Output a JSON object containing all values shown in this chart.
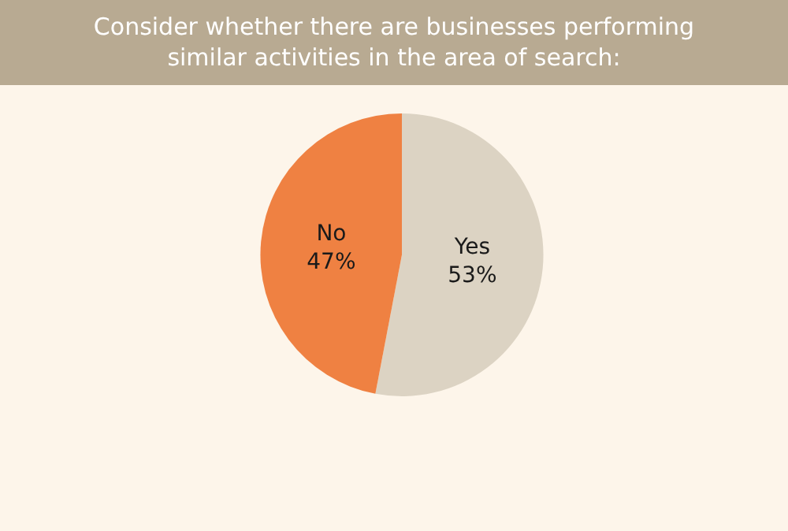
{
  "chart_data": {
    "type": "pie",
    "title": "Consider whether there are businesses performing similar activities in the area of search:",
    "categories": [
      "Yes",
      "No"
    ],
    "values": [
      53,
      47
    ],
    "value_labels": [
      "53%",
      "47%"
    ],
    "colors": [
      "#dcd3c3",
      "#ef8142"
    ],
    "legend": false
  }
}
